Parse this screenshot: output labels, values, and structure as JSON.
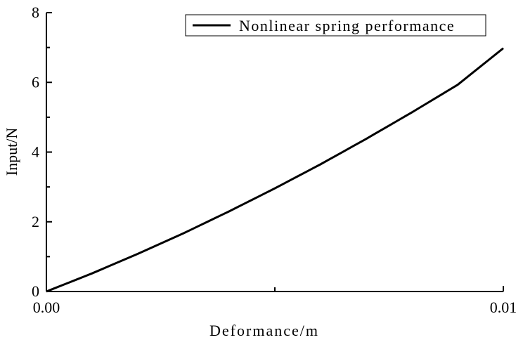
{
  "chart_data": {
    "type": "line",
    "title": "",
    "xlabel": "Deformance/m",
    "ylabel": "Input/N",
    "xlim": [
      0,
      0.01
    ],
    "ylim": [
      0,
      8
    ],
    "x_ticks": [
      0,
      0.01
    ],
    "x_tick_labels": [
      "0.00",
      "0.01"
    ],
    "x_minor_ticks": [
      0.005
    ],
    "y_ticks": [
      0,
      2,
      4,
      6,
      8
    ],
    "y_tick_labels": [
      "0",
      "2",
      "4",
      "6",
      "8"
    ],
    "legend": {
      "position": "top-right",
      "entries": [
        "Nonlinear spring performance"
      ]
    },
    "grid": false,
    "series": [
      {
        "name": "Nonlinear spring performance",
        "color": "#000000",
        "x": [
          0,
          0.001,
          0.002,
          0.003,
          0.004,
          0.005,
          0.006,
          0.007,
          0.008,
          0.009,
          0.01
        ],
        "y": [
          0,
          0.52,
          1.08,
          1.67,
          2.3,
          2.96,
          3.65,
          4.38,
          5.14,
          5.93,
          6.98
        ]
      }
    ]
  }
}
